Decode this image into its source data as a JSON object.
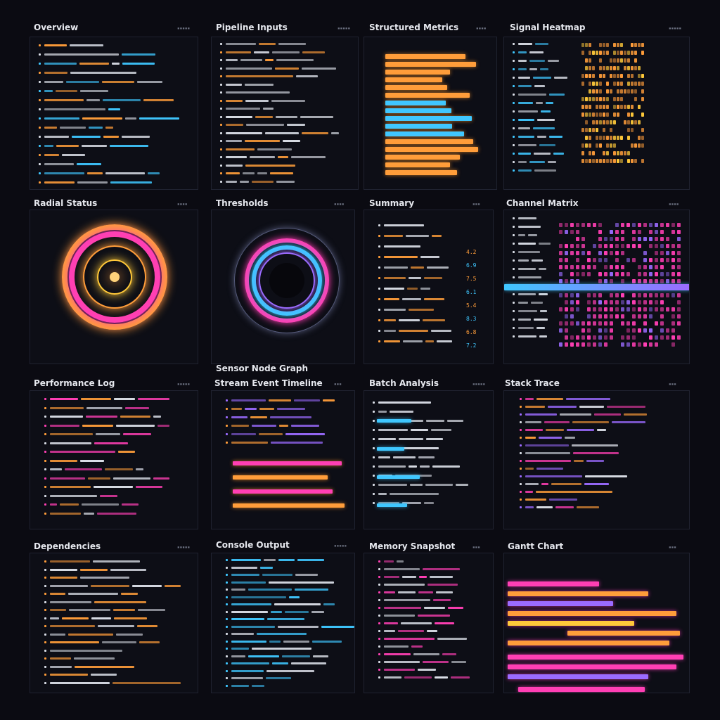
{
  "panels": [
    {
      "title": "Overview",
      "tag": "▪▪▪▪▪"
    },
    {
      "title": "Pipeline Inputs",
      "tag": "▪▪▪▪▪"
    },
    {
      "title": "Structured Metrics",
      "tag": "▪▪▪▪"
    },
    {
      "title": "Signal Heatmap",
      "tag": "▪▪▪▪▪"
    },
    {
      "title": "Radial Status",
      "tag": "▪▪▪▪"
    },
    {
      "title": "Thresholds",
      "tag": "▪▪▪▪"
    },
    {
      "title": "Summary",
      "tag": "▪▪▪"
    },
    {
      "title": "Channel Matrix",
      "tag": "▪▪▪▪"
    },
    {
      "title": "Performance Log",
      "tag": "▪▪▪▪▪"
    },
    {
      "title": "Stream Event Timeline",
      "tag": "▪▪▪"
    },
    {
      "title": "Batch Analysis",
      "tag": "▪▪▪▪▪"
    },
    {
      "title": "Stack Trace",
      "tag": "▪▪▪"
    },
    {
      "title": "Dependencies",
      "tag": "▪▪▪▪▪"
    },
    {
      "title": "Console Output",
      "tag": "▪▪▪▪▪"
    },
    {
      "title": "Memory Snapshot",
      "tag": "▪▪▪"
    },
    {
      "title": "Gantt Chart",
      "tag": "▪▪▪"
    }
  ],
  "floating_label": "Sensor Node Graph",
  "readouts": [
    "4.2",
    "6.9",
    "7.5",
    "6.1",
    "5.4",
    "8.3",
    "6.8",
    "7.2"
  ],
  "colors": {
    "orange": "#ff9d3a",
    "blue": "#3fc7ff",
    "pink": "#ff3fb4",
    "purple": "#9b6bff",
    "yellow": "#ffc93a"
  }
}
